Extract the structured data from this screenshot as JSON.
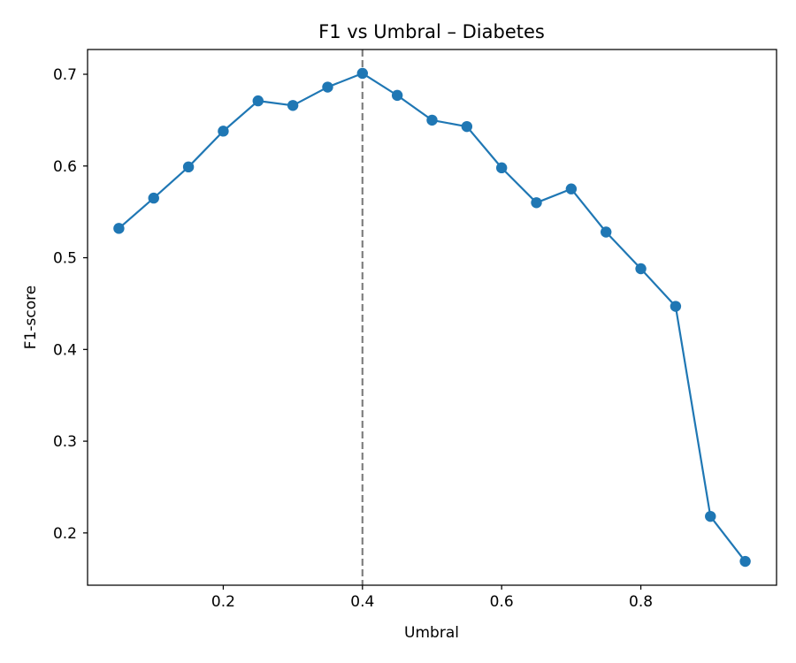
{
  "chart_data": {
    "type": "line",
    "title": "F1 vs Umbral – Diabetes",
    "xlabel": "Umbral",
    "ylabel": "F1-score",
    "xlim": [
      0.005,
      0.995
    ],
    "ylim": [
      0.143,
      0.727
    ],
    "xticks": [
      0.2,
      0.4,
      0.6,
      0.8
    ],
    "xtick_labels": [
      "0.2",
      "0.4",
      "0.6",
      "0.8"
    ],
    "yticks": [
      0.2,
      0.3,
      0.4,
      0.5,
      0.6,
      0.7
    ],
    "ytick_labels": [
      "0.2",
      "0.3",
      "0.4",
      "0.5",
      "0.6",
      "0.7"
    ],
    "grid": false,
    "line_color": "#1f77b4",
    "reference_line": {
      "orientation": "vertical",
      "x": 0.4,
      "style": "dashed",
      "color": "#808080"
    },
    "series": [
      {
        "marker": "circle",
        "x": [
          0.05,
          0.1,
          0.15,
          0.2,
          0.25,
          0.3,
          0.35,
          0.4,
          0.45,
          0.5,
          0.55,
          0.6,
          0.65,
          0.7,
          0.75,
          0.8,
          0.85,
          0.9,
          0.95
        ],
        "y": [
          0.532,
          0.565,
          0.599,
          0.638,
          0.671,
          0.666,
          0.686,
          0.701,
          0.677,
          0.65,
          0.643,
          0.598,
          0.56,
          0.575,
          0.528,
          0.488,
          0.447,
          0.218,
          0.169
        ]
      }
    ]
  }
}
